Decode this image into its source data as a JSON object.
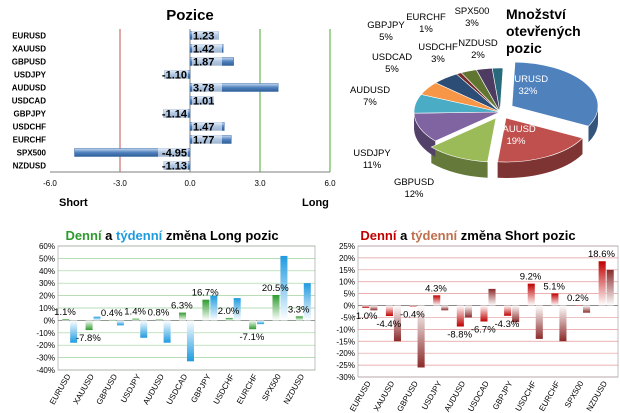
{
  "chart_data": [
    {
      "type": "bar",
      "orientation": "horizontal",
      "title": "Pozice",
      "categories": [
        "EURUSD",
        "XAUUSD",
        "GBPUSD",
        "USDJPY",
        "AUDUSD",
        "USDCAD",
        "GBPJPY",
        "USDCHF",
        "EURCHF",
        "SPX500",
        "NZDUSD"
      ],
      "values": [
        1.23,
        1.42,
        1.87,
        -1.1,
        3.78,
        1.01,
        -1.14,
        1.47,
        1.77,
        -4.95,
        -1.13
      ],
      "value_labels": [
        "1.23",
        "1.42",
        "1.87",
        "-1.10",
        "3.78",
        "1.01",
        "-1.14",
        "1.47",
        "1.77",
        "-4.95",
        "-1.13"
      ],
      "xlim": [
        -6.0,
        6.0
      ],
      "xticks": [
        "-6.0",
        "-3.0",
        "0.0",
        "3.0",
        "6.0"
      ],
      "left_label": "Short",
      "right_label": "Long",
      "colors": {
        "bar": "#4f81bd",
        "bar_light": "#c6d9f1",
        "short_line": "#c0504d",
        "long_line": "#4ea72e"
      }
    },
    {
      "type": "pie",
      "title_lines": [
        "Množství",
        "otevřených",
        "pozic"
      ],
      "slices": [
        {
          "name": "EURUSD",
          "value": 32,
          "label": "32%",
          "color": "#4f81bd"
        },
        {
          "name": "XAUUSD",
          "value": 19,
          "label": "19%",
          "color": "#c0504d"
        },
        {
          "name": "GBPUSD",
          "value": 12,
          "label": "12%",
          "color": "#9bbb59"
        },
        {
          "name": "USDJPY",
          "value": 11,
          "label": "11%",
          "color": "#8064a2"
        },
        {
          "name": "AUDUSD",
          "value": 7,
          "label": "7%",
          "color": "#4bacc6"
        },
        {
          "name": "USDCAD",
          "value": 5,
          "label": "5%",
          "color": "#f79646"
        },
        {
          "name": "GBPJPY",
          "value": 5,
          "label": "5%",
          "color": "#2c4d75"
        },
        {
          "name": "EURCHF",
          "value": 1,
          "label": "1%",
          "color": "#772c2a"
        },
        {
          "name": "USDCHF",
          "value": 3,
          "label": "3%",
          "color": "#5f7530"
        },
        {
          "name": "SPX500",
          "value": 3,
          "label": "3%",
          "color": "#4d3b62"
        },
        {
          "name": "NZDUSD",
          "value": 2,
          "label": "2%",
          "color": "#276a7c"
        }
      ]
    },
    {
      "type": "bar",
      "title_parts": [
        {
          "text": "Denní",
          "color": "#2e9b2e"
        },
        {
          "text": " a ",
          "color": "#000000"
        },
        {
          "text": "týdenní",
          "color": "#1f9be0"
        },
        {
          "text": " změna Long pozic",
          "color": "#000000"
        }
      ],
      "categories": [
        "EURUSD",
        "XAUUSD",
        "GBPUSD",
        "USDJPY",
        "AUDUSD",
        "USDCAD",
        "GBPJPY",
        "USDCHF",
        "EURCHF",
        "SPX500",
        "NZDUSD"
      ],
      "series": [
        {
          "name": "Denní",
          "values": [
            1.1,
            -7.8,
            0.4,
            1.4,
            0.8,
            6.3,
            16.7,
            2.0,
            -7.1,
            20.5,
            3.3
          ],
          "color": "#2e9b2e"
        },
        {
          "name": "Týdenní",
          "values": [
            -18,
            3,
            -4,
            -14,
            -18,
            -33,
            20,
            18,
            -3,
            52,
            30
          ],
          "color": "#1f9be0"
        }
      ],
      "value_labels": [
        "1.1%",
        "-7.8%",
        "0.4%",
        "1.4%",
        "0.8%",
        "6.3%",
        "16.7%",
        "2.0%",
        "-7.1%",
        "20.5%",
        "3.3%"
      ],
      "ylim": [
        -40,
        60
      ],
      "yticks": [
        "60%",
        "50%",
        "40%",
        "30%",
        "20%",
        "10%",
        "0%",
        "-10%",
        "-20%",
        "-30%",
        "-40%"
      ]
    },
    {
      "type": "bar",
      "title_parts": [
        {
          "text": "Denní",
          "color": "#c00000"
        },
        {
          "text": " a ",
          "color": "#000000"
        },
        {
          "text": "týdenní",
          "color": "#c0704d"
        },
        {
          "text": " změna Short pozic",
          "color": "#000000"
        }
      ],
      "categories": [
        "EURUSD",
        "XAUUSD",
        "GBPUSD",
        "USDJPY",
        "AUDUSD",
        "USDCAD",
        "GBPJPY",
        "USDCHF",
        "EURCHF",
        "SPX500",
        "NZDUSD"
      ],
      "series": [
        {
          "name": "Denní",
          "values": [
            -1.0,
            -4.4,
            -0.4,
            4.3,
            -8.8,
            -6.7,
            -4.3,
            9.2,
            5.1,
            0.2,
            18.6
          ],
          "color": "#c00000"
        },
        {
          "name": "Týdenní",
          "values": [
            -2,
            -15,
            -26,
            -2,
            -5,
            7,
            -7,
            -14,
            -15,
            -3,
            15
          ],
          "color": "#8b2a2a"
        }
      ],
      "value_labels": [
        "-1.0%",
        "-4.4%",
        "-0.4%",
        "4.3%",
        "-8.8%",
        "-6.7%",
        "-4.3%",
        "9.2%",
        "5.1%",
        "0.2%",
        "18.6%"
      ],
      "ylim": [
        -30,
        25
      ],
      "yticks": [
        "25%",
        "20%",
        "15%",
        "10%",
        "5%",
        "0%",
        "-5%",
        "-10%",
        "-15%",
        "-20%",
        "-25%",
        "-30%"
      ]
    }
  ]
}
